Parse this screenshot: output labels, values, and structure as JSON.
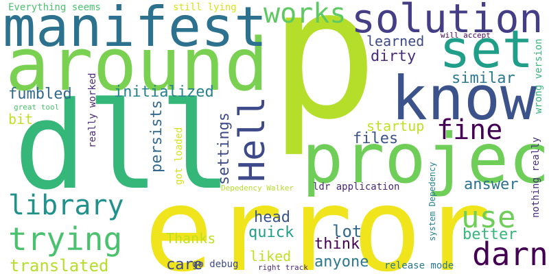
{
  "words": [
    {
      "text": "p",
      "color": "#b5de2b"
    },
    {
      "text": "error",
      "color": "#f0e51c"
    },
    {
      "text": "dll",
      "color": "#35b779"
    },
    {
      "text": "project",
      "color": "#6ece58"
    },
    {
      "text": "around",
      "color": "#7ad151"
    },
    {
      "text": "manifest",
      "color": "#2c728e"
    },
    {
      "text": "know",
      "color": "#3b528b"
    },
    {
      "text": "solution",
      "color": "#433e85"
    },
    {
      "text": "set",
      "color": "#1f9e89"
    },
    {
      "text": "Hell",
      "color": "#3e4989"
    },
    {
      "text": "trying",
      "color": "#4ac16d"
    },
    {
      "text": "library",
      "color": "#21918c"
    },
    {
      "text": "darn",
      "color": "#440154"
    },
    {
      "text": "works",
      "color": "#5ec962"
    },
    {
      "text": "fine",
      "color": "#440154"
    },
    {
      "text": "use",
      "color": "#6ece58"
    },
    {
      "text": "initialized",
      "color": "#26828e"
    },
    {
      "text": "persists",
      "color": "#31688e"
    },
    {
      "text": "settings",
      "color": "#3e4989"
    },
    {
      "text": "fumbled",
      "color": "#31688e"
    },
    {
      "text": "translated",
      "color": "#b5de2b"
    },
    {
      "text": "similar",
      "color": "#2a788e"
    },
    {
      "text": "answer",
      "color": "#2c728e"
    },
    {
      "text": "head",
      "color": "#3b528b"
    },
    {
      "text": "think",
      "color": "#440154"
    },
    {
      "text": "lot",
      "color": "#31688e"
    },
    {
      "text": "quick",
      "color": "#1f9e89"
    },
    {
      "text": "files",
      "color": "#3b528b"
    },
    {
      "text": "better",
      "color": "#35b779"
    },
    {
      "text": "anyone",
      "color": "#2a788e"
    },
    {
      "text": "learned",
      "color": "#3e4989"
    },
    {
      "text": "startup",
      "color": "#c2df23"
    },
    {
      "text": "dirty",
      "color": "#472d7b"
    },
    {
      "text": "Thanks",
      "color": "#c2df23"
    },
    {
      "text": "liked",
      "color": "#c2df23"
    },
    {
      "text": "care",
      "color": "#3e4989"
    },
    {
      "text": "bit",
      "color": "#c2df23"
    },
    {
      "text": "Everything seems",
      "color": "#4ac16d"
    },
    {
      "text": "still lying",
      "color": "#d8e219"
    },
    {
      "text": "will accept",
      "color": "#440154"
    },
    {
      "text": "system Depedency",
      "color": "#26828e"
    },
    {
      "text": "wrong version",
      "color": "#35b779"
    },
    {
      "text": "nothing really",
      "color": "#472d7b"
    },
    {
      "text": "really worked",
      "color": "#482878"
    },
    {
      "text": "great tool",
      "color": "#4ac16d"
    },
    {
      "text": "got loaded",
      "color": "#d8e219"
    },
    {
      "text": "Depedency Walker",
      "color": "#b5de2b"
    },
    {
      "text": "ldr application",
      "color": "#482878"
    },
    {
      "text": "go debug",
      "color": "#3e4989"
    },
    {
      "text": "right track",
      "color": "#482878"
    },
    {
      "text": "release mode",
      "color": "#2a788e"
    }
  ]
}
